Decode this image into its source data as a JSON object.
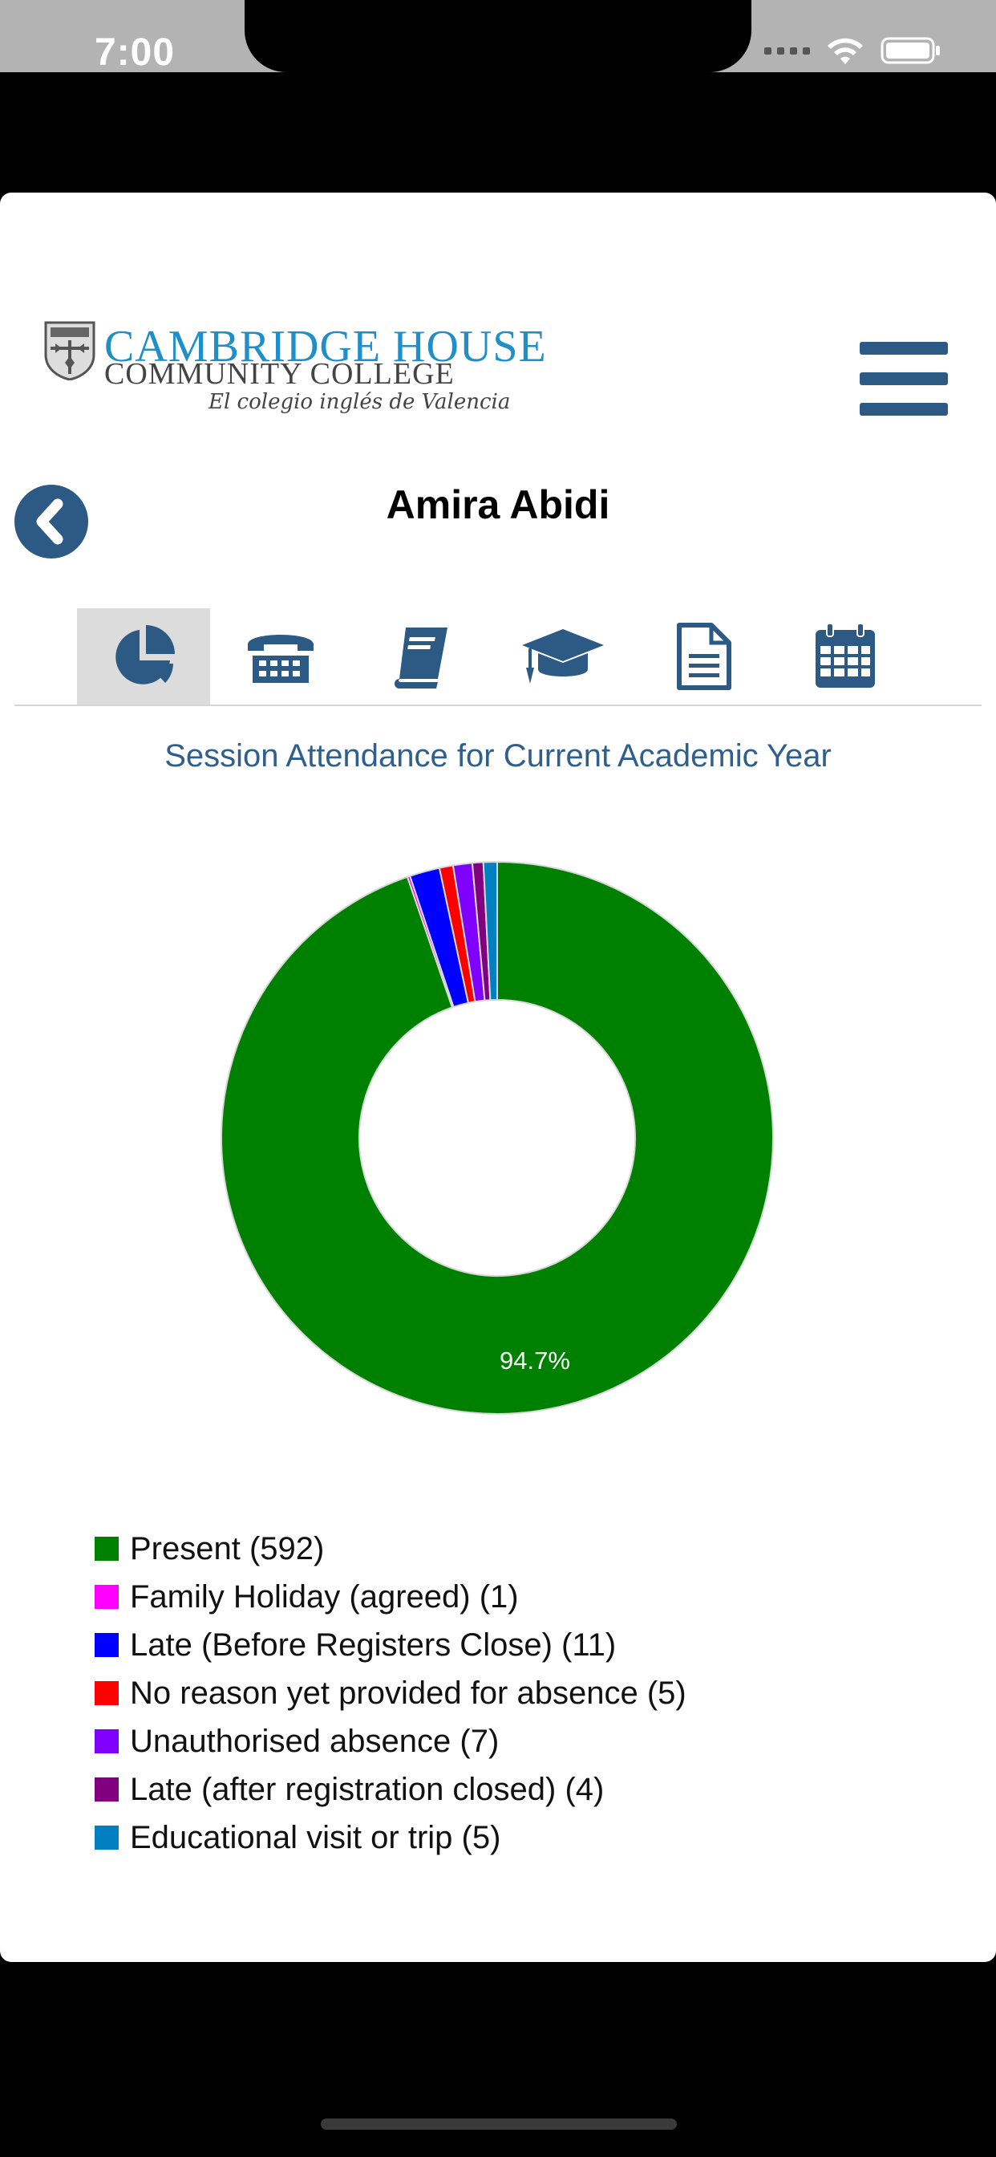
{
  "status": {
    "time": "7:00"
  },
  "logo": {
    "line1": "CAMBRIDGE HOUSE",
    "line2": "COMMUNITY COLLEGE",
    "tagline": "El colegio inglés de Valencia"
  },
  "header": {
    "student_name": "Amira Abidi"
  },
  "tabs": [
    {
      "icon": "pie-chart-icon",
      "active": true
    },
    {
      "icon": "telephone-icon",
      "active": false
    },
    {
      "icon": "book-icon",
      "active": false
    },
    {
      "icon": "graduation-cap-icon",
      "active": false
    },
    {
      "icon": "document-icon",
      "active": false
    },
    {
      "icon": "calendar-icon",
      "active": false
    }
  ],
  "chart_data": {
    "type": "pie",
    "title": "Session Attendance for Current Academic Year",
    "donut": true,
    "slices": [
      {
        "label": "Present",
        "value": 592,
        "color": "#008000"
      },
      {
        "label": "Family Holiday (agreed)",
        "value": 1,
        "color": "#ff00ff"
      },
      {
        "label": "Late (Before Registers Close)",
        "value": 11,
        "color": "#0000ff"
      },
      {
        "label": "No reason yet provided for absence",
        "value": 5,
        "color": "#ff0000"
      },
      {
        "label": "Unauthorised absence",
        "value": 7,
        "color": "#8000ff"
      },
      {
        "label": "Late (after registration closed)",
        "value": 4,
        "color": "#800080"
      },
      {
        "label": "Educational visit or trip",
        "value": 5,
        "color": "#0080c0"
      }
    ],
    "data_labels": [
      "94.7%"
    ],
    "legend_position": "bottom"
  },
  "legend": [
    "Present (592)",
    "Family Holiday (agreed) (1)",
    "Late (Before Registers Close) (11)",
    "No reason yet provided for absence (5)",
    "Unauthorised absence (7)",
    "Late (after registration closed) (4)",
    "Educational visit or trip (5)"
  ]
}
